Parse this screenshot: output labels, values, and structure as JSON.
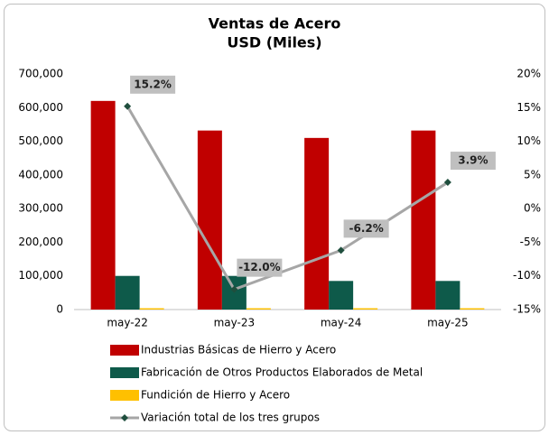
{
  "chart_data": {
    "type": "bar+line",
    "title": "Ventas de Acero",
    "subtitle": "USD (Miles)",
    "categories": [
      "may-22",
      "may-23",
      "may-24",
      "may-25"
    ],
    "series": [
      {
        "name": "Industrias Básicas de Hierro y Acero",
        "color": "#c00000",
        "type": "bar",
        "values": [
          620000,
          532000,
          510000,
          532000
        ]
      },
      {
        "name": "Fabricación de Otros Productos Elaborados de Metal",
        "color": "#0e5a4a",
        "type": "bar",
        "values": [
          100000,
          100000,
          85000,
          85000
        ]
      },
      {
        "name": "Fundición de Hierro y Acero",
        "color": "#ffc000",
        "type": "bar",
        "values": [
          4000,
          4000,
          4000,
          4000
        ]
      },
      {
        "name": "Variación total de los tres grupos",
        "color": "#a6a6a6",
        "marker_color": "#1f4e3d",
        "type": "line",
        "axis": "y2",
        "values": [
          15.2,
          -12.0,
          -6.2,
          3.9
        ],
        "value_labels": [
          "15.2%",
          "-12.0%",
          "-6.2%",
          "3.9%"
        ]
      }
    ],
    "ylim": [
      0,
      700000
    ],
    "yticks": [
      0,
      {
        "value": 100000,
        "label": "100,000"
      },
      {
        "value": 200000,
        "label": "200,000"
      },
      {
        "value": 300000,
        "label": "300,000"
      },
      {
        "value": 400000,
        "label": "400,000"
      },
      {
        "value": 500000,
        "label": "500,000"
      },
      {
        "value": 600000,
        "label": "600,000"
      },
      {
        "value": 700000,
        "label": "700,000"
      }
    ],
    "y2lim": [
      -15,
      20
    ],
    "y2ticks": [
      {
        "value": -15,
        "label": "-15%"
      },
      {
        "value": -10,
        "label": "-10%"
      },
      {
        "value": -5,
        "label": "-5%"
      },
      {
        "value": 0,
        "label": "0%"
      },
      {
        "value": 5,
        "label": "5%"
      },
      {
        "value": 10,
        "label": "10%"
      },
      {
        "value": 15,
        "label": "15%"
      },
      {
        "value": 20,
        "label": "20%"
      }
    ],
    "grid": false,
    "legend": "bottom"
  }
}
